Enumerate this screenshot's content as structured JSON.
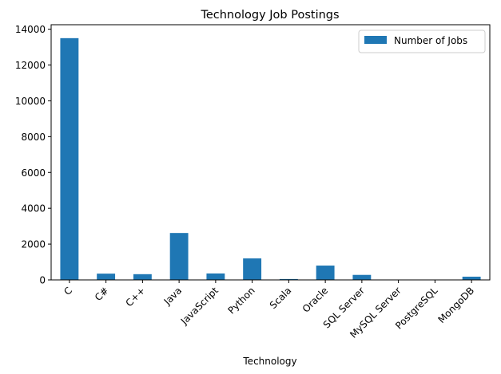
{
  "chart_data": {
    "type": "bar",
    "title": "Technology Job Postings",
    "xlabel": "Technology",
    "ylabel": "",
    "categories": [
      "C",
      "C#",
      "C++",
      "Java",
      "JavaScript",
      "Python",
      "Scala",
      "Oracle",
      "SQL Server",
      "MySQL Server",
      "PostgreSQL",
      "MongoDB"
    ],
    "series": [
      {
        "name": "Number of Jobs",
        "values": [
          13500,
          350,
          320,
          2620,
          360,
          1200,
          50,
          800,
          280,
          0,
          0,
          180
        ],
        "color": "#1f77b4"
      }
    ],
    "ylim": [
      0,
      14250
    ],
    "yticks": [
      0,
      2000,
      4000,
      6000,
      8000,
      10000,
      12000,
      14000
    ],
    "ytick_labels": [
      "0",
      "2000",
      "4000",
      "6000",
      "8000",
      "10000",
      "12000",
      "14000"
    ],
    "legend": "top-right",
    "grid": false
  }
}
